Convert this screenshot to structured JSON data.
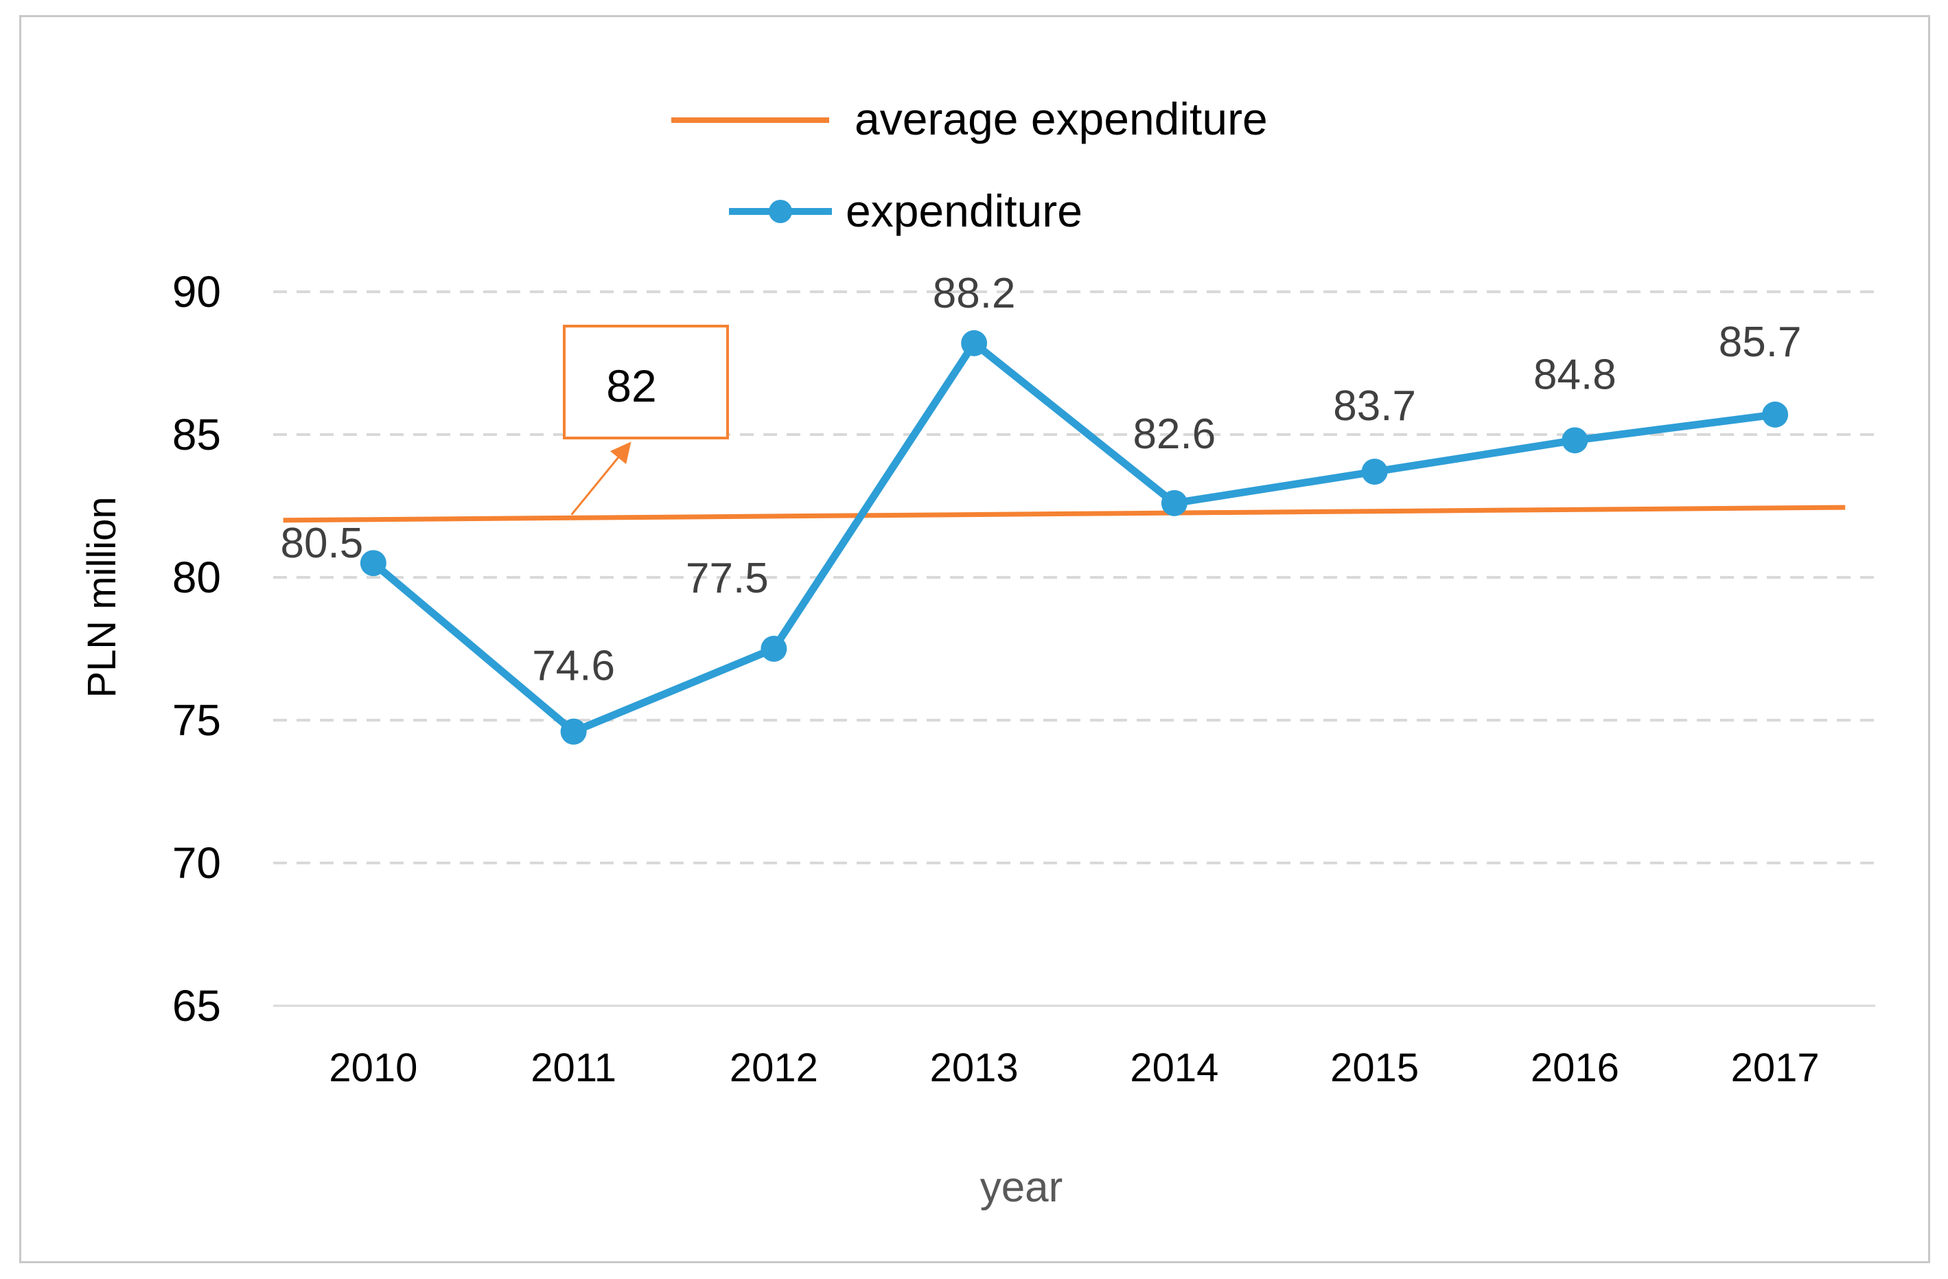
{
  "chart_data": {
    "type": "line",
    "title": "",
    "xlabel": "year",
    "ylabel": "PLN million",
    "ylim": [
      65,
      90
    ],
    "yticks": [
      90,
      85,
      80,
      75,
      70,
      65
    ],
    "grid": true,
    "legend_position": "top",
    "categories": [
      "2010",
      "2011",
      "2012",
      "2013",
      "2014",
      "2015",
      "2016",
      "2017"
    ],
    "series": [
      {
        "name": "expenditure",
        "color": "#2e9ed6",
        "marker": "circle",
        "values": [
          80.5,
          74.6,
          77.5,
          88.2,
          82.6,
          83.7,
          84.8,
          85.7
        ],
        "labels": [
          "80.5",
          "74.6",
          "77.5",
          "88.2",
          "82.6",
          "83.7",
          "84.8",
          "85.7"
        ]
      },
      {
        "name": "average expenditure",
        "color": "#f58232",
        "marker": "none",
        "values": [
          82.0,
          82.06,
          82.12,
          82.18,
          82.24,
          82.3,
          82.36,
          82.42
        ],
        "trend_end_value": 82.45
      }
    ],
    "annotation": {
      "text": "82",
      "target_category": "2011",
      "target_value": 82.1,
      "color": "#f58232"
    }
  }
}
